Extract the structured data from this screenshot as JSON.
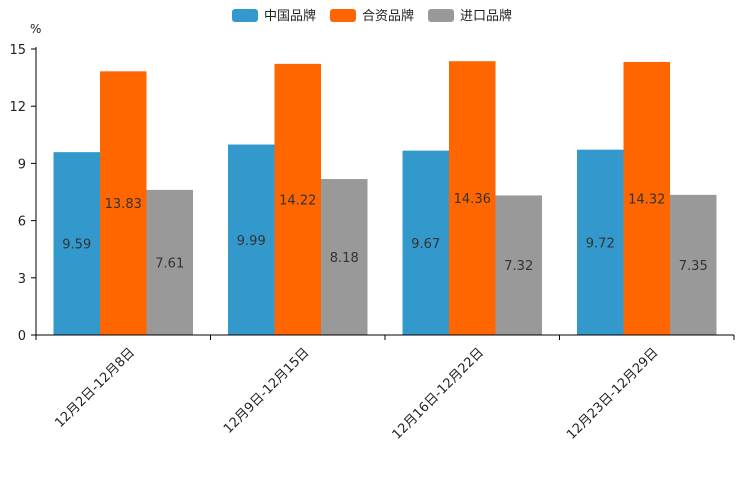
{
  "chart_data": {
    "type": "bar",
    "title": "",
    "unit": "%",
    "xlabel": "",
    "ylabel": "",
    "ylim": [
      0,
      15
    ],
    "yticks": [
      0,
      3,
      6,
      9,
      12,
      15
    ],
    "grid": false,
    "legend_position": "top-center",
    "categories": [
      "12月2日-12月8日",
      "12月9日-12月15日",
      "12月16日-12月22日",
      "12月23日-12月29日"
    ],
    "series": [
      {
        "name": "中国品牌",
        "color": "#3399cc",
        "values": [
          9.59,
          9.99,
          9.67,
          9.72
        ]
      },
      {
        "name": "合资品牌",
        "color": "#ff6600",
        "values": [
          13.83,
          14.22,
          14.36,
          14.32
        ]
      },
      {
        "name": "进口品牌",
        "color": "#999999",
        "values": [
          7.61,
          8.18,
          7.32,
          7.35
        ]
      }
    ]
  }
}
